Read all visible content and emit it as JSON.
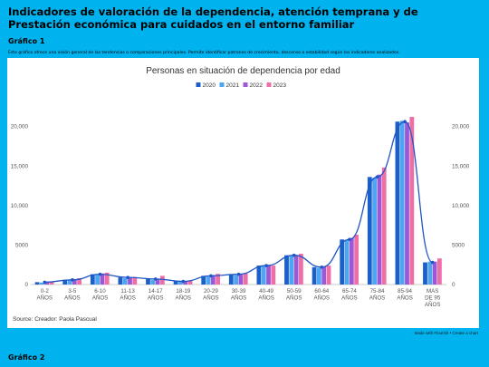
{
  "page": {
    "title": "Indicadores de valoración de la dependencia, atención temprana y de Prestación económica para cuidados en el entorno familiar",
    "section1": "Gráfico 1",
    "description": "Este gráfico ofrece una visión general de las tendencias o comparaciones principales. Permite identificar patrones de crecimiento, descenso o estabilidad según los indicadores analizados.",
    "source": "Source: Creador: Paola Pascual",
    "credit": "Made with Flourish • Create a chart",
    "section2": "Gráfico 2"
  },
  "chart_data": {
    "type": "bar",
    "title": "Personas en situación de dependencia por edad",
    "categories": [
      [
        "0-2",
        "AÑOS"
      ],
      [
        "3-5",
        "AÑOS"
      ],
      [
        "6-10",
        "AÑOS"
      ],
      [
        "11-13",
        "AÑOS"
      ],
      [
        "14-17",
        "AÑOS"
      ],
      [
        "18-19",
        "AÑOS"
      ],
      [
        "20-29",
        "AÑOS"
      ],
      [
        "30-39",
        "AÑOS"
      ],
      [
        "40-49",
        "AÑOS"
      ],
      [
        "50-59",
        "AÑOS"
      ],
      [
        "60-64",
        "AÑOS"
      ],
      [
        "65-74",
        "AÑOS"
      ],
      [
        "75-84",
        "AÑOS"
      ],
      [
        "85-94",
        "AÑOS"
      ],
      [
        "MAS",
        "DE 95",
        "AÑOS"
      ]
    ],
    "series": [
      {
        "name": "2020",
        "color": "#1b5fc9",
        "values": [
          300,
          600,
          1300,
          900,
          700,
          400,
          1100,
          1300,
          2400,
          3700,
          2200,
          5700,
          13600,
          20600,
          2800
        ]
      },
      {
        "name": "2021",
        "color": "#4ea6f2",
        "values": [
          250,
          550,
          1200,
          800,
          600,
          350,
          1000,
          1200,
          2300,
          3600,
          2100,
          5600,
          13500,
          20700,
          2900
        ]
      },
      {
        "name": "2022",
        "color": "#9a58d6",
        "values": [
          280,
          620,
          1400,
          850,
          750,
          450,
          1200,
          1250,
          2500,
          3700,
          2300,
          5900,
          13900,
          20500,
          2900
        ]
      },
      {
        "name": "2023",
        "color": "#ee6fa6",
        "values": [
          350,
          800,
          1500,
          950,
          1100,
          500,
          1350,
          1400,
          2400,
          3900,
          2400,
          6300,
          14800,
          21200,
          3300
        ]
      }
    ],
    "line_series": "2020",
    "ylim": [
      0,
      22000
    ],
    "y_ticks": [
      0,
      5000,
      10000,
      15000,
      20000
    ],
    "y_tick_labels": [
      "0",
      "5000",
      "10,000",
      "15,000",
      "20,000"
    ],
    "legend_position": "top-center",
    "grid": false
  }
}
